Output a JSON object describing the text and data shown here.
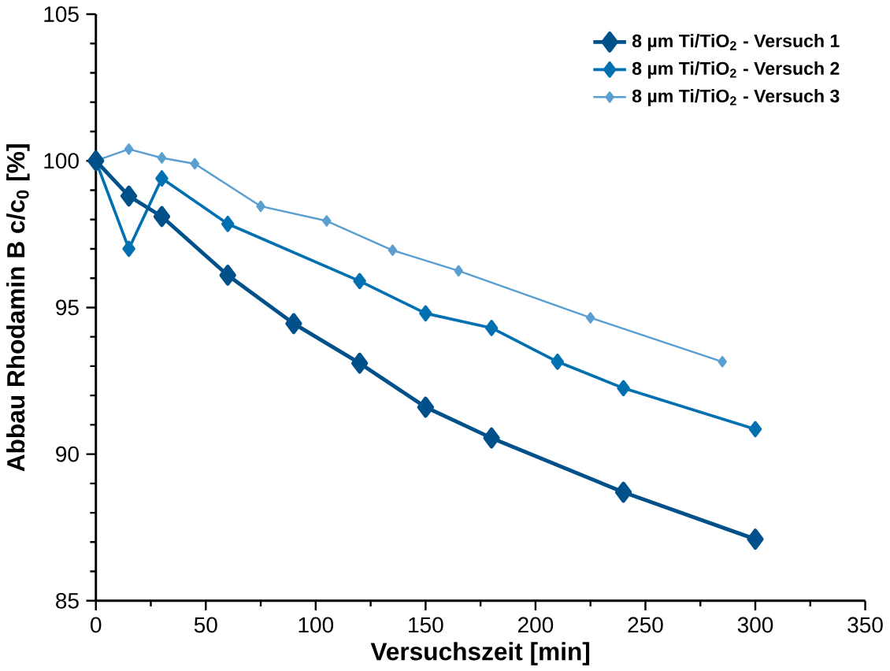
{
  "chart_data": {
    "type": "line",
    "xlabel": "Versuchszeit [min]",
    "ylabel": "Abbau Rhodamin B c/c$_{0}$ [%]",
    "xlim": [
      0,
      350
    ],
    "xticks": [
      0,
      50,
      100,
      150,
      200,
      250,
      300,
      350
    ],
    "ylim": [
      85,
      105
    ],
    "yticks": [
      85,
      90,
      95,
      100,
      105
    ],
    "legend": "top right",
    "marker": "diamond",
    "line_style": "solid",
    "grid": false,
    "series": [
      {
        "name": "8 µm Ti/TiO$_{2}$ - Versuch 1",
        "color": "#00508a",
        "x": [
          0,
          15,
          30,
          60,
          90,
          120,
          150,
          180,
          240,
          300
        ],
        "values": [
          100,
          98.8,
          98.1,
          96.1,
          94.45,
          93.1,
          91.6,
          90.55,
          88.7,
          87.1
        ]
      },
      {
        "name": "8 µm Ti/TiO$_{2}$ - Versuch 2",
        "color": "#0070b0",
        "x": [
          0,
          15,
          30,
          60,
          120,
          150,
          180,
          210,
          240,
          300
        ],
        "values": [
          100,
          97.0,
          99.4,
          97.85,
          95.9,
          94.8,
          94.3,
          93.15,
          92.25,
          90.85
        ]
      },
      {
        "name": "8 µm Ti/TiO$_{2}$ - Versuch 3",
        "color": "#5a9fd0",
        "x": [
          0,
          15,
          30,
          45,
          75,
          105,
          135,
          165,
          225,
          285
        ],
        "values": [
          100,
          100.4,
          100.1,
          99.9,
          98.45,
          97.95,
          96.95,
          96.25,
          94.65,
          93.15
        ]
      }
    ]
  }
}
